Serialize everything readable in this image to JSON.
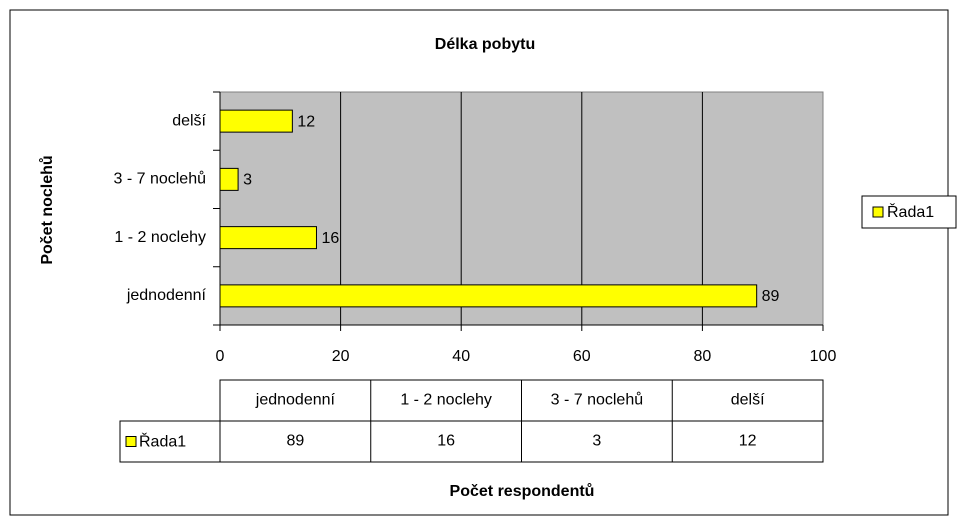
{
  "chart_data": {
    "type": "bar",
    "orientation": "horizontal",
    "title": "Délka pobytu",
    "x_label": "Počet respondentů",
    "y_label": "Počet noclehů",
    "categories": [
      "jednodenní",
      "1 - 2 noclehy",
      "3 - 7 noclehů",
      "delší"
    ],
    "series": [
      {
        "name": "Řada1",
        "color": "#ffff00",
        "values": [
          89,
          16,
          3,
          12
        ]
      }
    ],
    "xlim": [
      0,
      100
    ],
    "xticks": [
      0,
      20,
      40,
      60,
      80,
      100
    ],
    "grid": true,
    "legend": "right",
    "data_table": true
  }
}
